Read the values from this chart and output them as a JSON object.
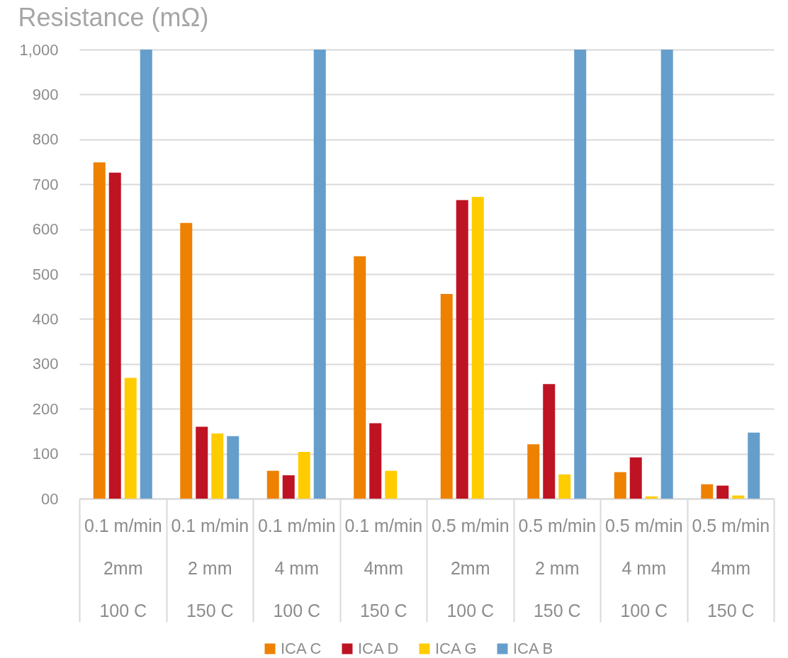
{
  "chart_data": {
    "type": "bar",
    "ylabel": "Resistance (mΩ)",
    "categories": [
      "0.1 m/min\n2mm\n100 C",
      "0.1 m/min\n2 mm\n150 C",
      "0.1 m/min\n4 mm\n100 C",
      "0.1 m/min\n4mm\n150 C",
      "0.5 m/min\n2mm\n100 C",
      "0.5 m/min\n2 mm\n150 C",
      "0.5 m/min\n4 mm\n100 C",
      "0.5 m/min\n4mm\n150 C"
    ],
    "series": [
      {
        "name": "ICA C",
        "color": "#ee8100",
        "values": [
          749,
          614,
          62,
          540,
          456,
          121,
          59,
          32
        ]
      },
      {
        "name": "ICA D",
        "color": "#be1323",
        "values": [
          726,
          160,
          52,
          168,
          665,
          255,
          92,
          29
        ]
      },
      {
        "name": "ICA G",
        "color": "#ffcc00",
        "values": [
          269,
          145,
          104,
          62,
          672,
          54,
          5,
          7
        ]
      },
      {
        "name": "ICA B",
        "color": "#669ecb",
        "values": [
          1000,
          139,
          1000,
          null,
          null,
          1000,
          1000,
          147
        ]
      }
    ],
    "ylim": [
      0,
      1000
    ],
    "yticks": [
      {
        "value": 0,
        "label": "00"
      },
      100,
      200,
      300,
      400,
      500,
      600,
      700,
      800,
      900,
      {
        "value": 1000,
        "label": "1,000"
      }
    ],
    "grid": "y",
    "legend": "bottom"
  }
}
